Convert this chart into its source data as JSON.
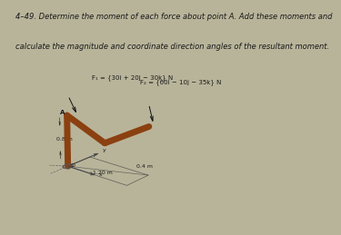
{
  "title_line1": "4–49. Determine the moment of each force about point A. Add these moments and",
  "title_line2": "calculate the magnitude and coordinate direction angles of the resultant moment.",
  "highlight_color": "#d4e832",
  "background_color": "#b8b49a",
  "pipe_color": "#8B4010",
  "text_color": "#1a1a1a",
  "F1_label": "F₁ = {30i + 20j − 30k} N",
  "F2_label": "F₂ = {60i − 10j − 35k} N",
  "dim_08": "0.8 m",
  "dim_120": "1.20 m",
  "dim_04": "0.4 m",
  "point_A": "A",
  "point_O": "O",
  "axis_x": "x",
  "axis_y": "y",
  "axis_z": "z",
  "font_title": 6.0,
  "font_labels": 5.0,
  "font_dims": 4.5
}
